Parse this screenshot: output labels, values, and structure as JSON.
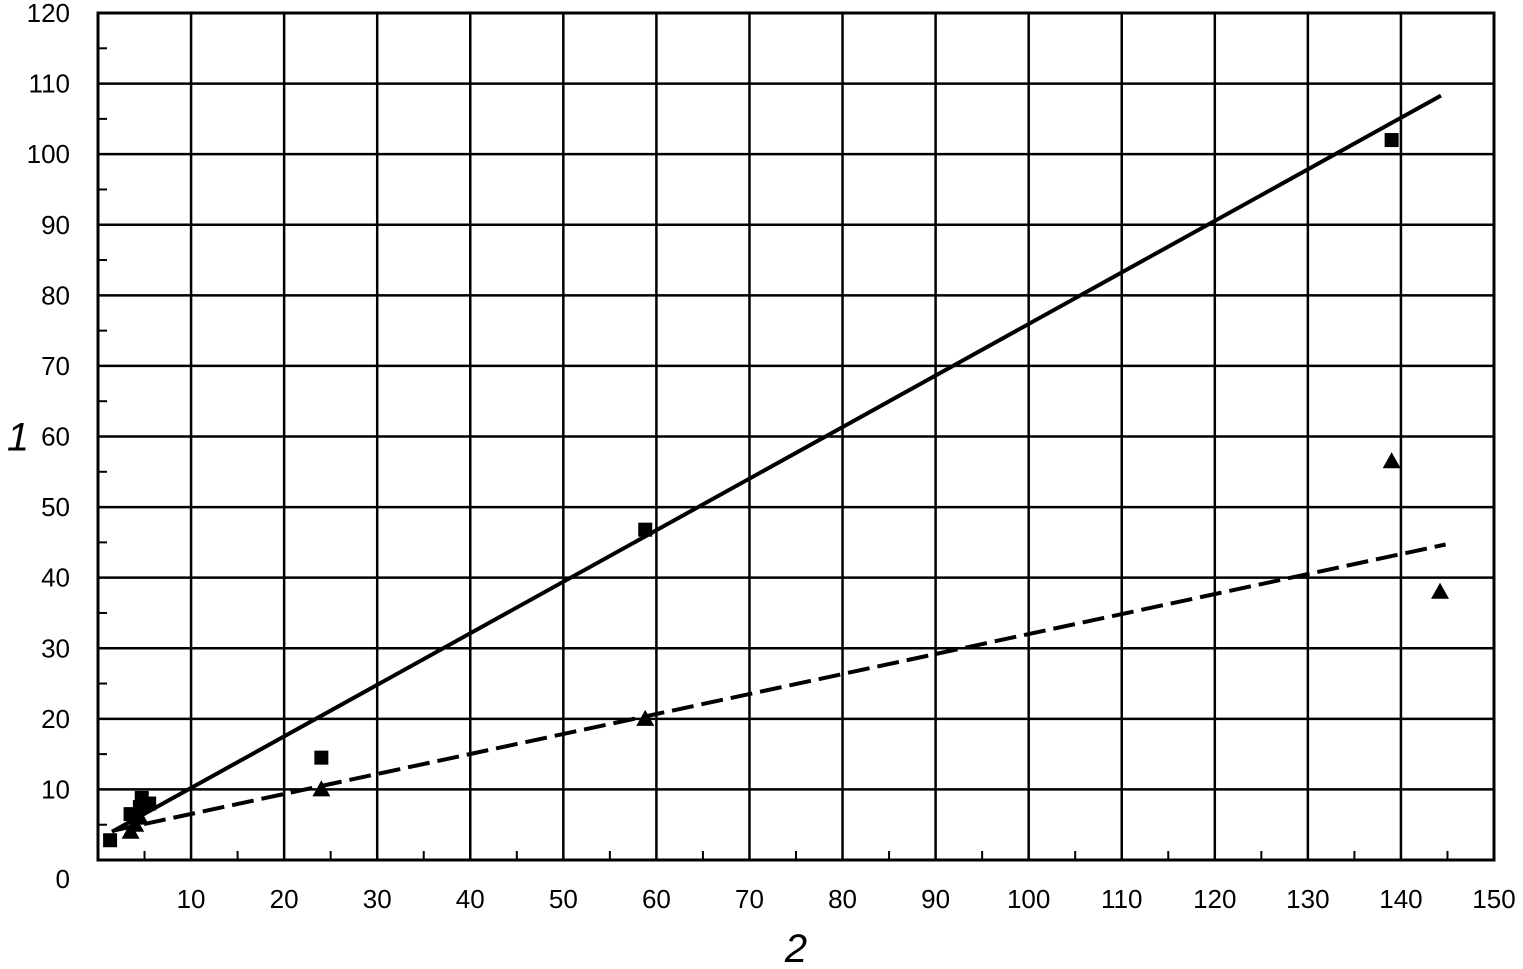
{
  "chart_data": {
    "type": "scatter",
    "title": "",
    "xlabel": "2",
    "ylabel": "1",
    "xlim": [
      0,
      150
    ],
    "ylim": [
      0,
      120
    ],
    "xticks": [
      10,
      20,
      30,
      40,
      50,
      60,
      70,
      80,
      90,
      100,
      110,
      120,
      130,
      140,
      150
    ],
    "yticks": [
      10,
      20,
      30,
      40,
      50,
      60,
      70,
      80,
      90,
      100,
      110,
      120
    ],
    "origin_label": "0",
    "grid": true,
    "legend": "none",
    "series": [
      {
        "marker": "square",
        "color": "#000000",
        "points": [
          [
            1.3,
            2.8
          ],
          [
            3.5,
            6.5
          ],
          [
            4.5,
            7.5
          ],
          [
            4.7,
            8.8
          ],
          [
            5.5,
            8.0
          ],
          [
            24.0,
            14.5
          ],
          [
            58.8,
            46.8
          ],
          [
            139.0,
            102.0
          ]
        ]
      },
      {
        "marker": "triangle",
        "color": "#000000",
        "points": [
          [
            3.5,
            4.0
          ],
          [
            4.0,
            5.0
          ],
          [
            4.5,
            6.0
          ],
          [
            24.0,
            10.0
          ],
          [
            58.8,
            20.0
          ],
          [
            139.0,
            56.5
          ],
          [
            144.2,
            38.0
          ]
        ]
      }
    ],
    "fits": [
      {
        "style": "solid",
        "color": "#000000",
        "from": [
          1.5,
          4.0
        ],
        "to": [
          144.3,
          108.3
        ]
      },
      {
        "style": "dashed",
        "color": "#000000",
        "from": [
          1.8,
          4.2
        ],
        "to": [
          144.8,
          44.7
        ]
      }
    ]
  }
}
